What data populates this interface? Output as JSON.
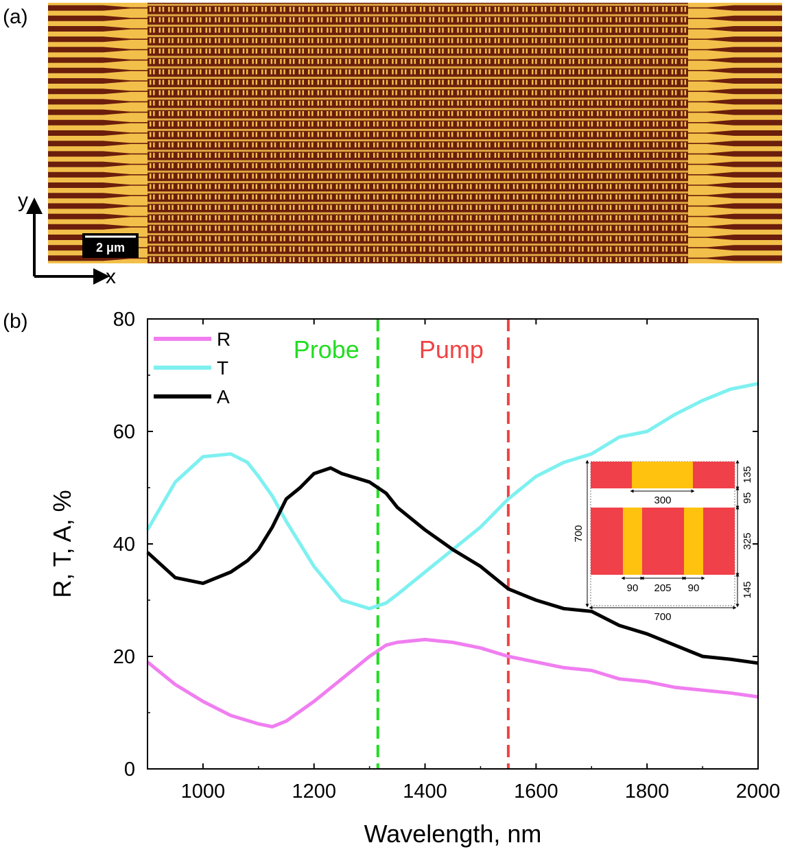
{
  "panel_a": {
    "label": "(a)",
    "scale_bar_label": "2 μm",
    "axis_x_label": "x",
    "axis_y_label": "y",
    "colors": {
      "background": "#6b1e0c",
      "gold": "#f2c04a"
    }
  },
  "panel_b": {
    "label": "(b)"
  },
  "chart_data": {
    "type": "line",
    "xlabel": "Wavelength, nm",
    "ylabel": "R, T, A, %",
    "xlim": [
      900,
      2000
    ],
    "ylim": [
      0,
      80
    ],
    "xticks": [
      "1000",
      "1200",
      "1400",
      "1600",
      "1800",
      "2000"
    ],
    "yticks": [
      "0",
      "20",
      "40",
      "60",
      "80"
    ],
    "legend_position": "top-left",
    "series": [
      {
        "name": "R",
        "color": "#f07ef0",
        "x": [
          900,
          950,
          1000,
          1050,
          1100,
          1125,
          1150,
          1200,
          1250,
          1300,
          1330,
          1350,
          1400,
          1450,
          1500,
          1550,
          1600,
          1650,
          1700,
          1750,
          1800,
          1850,
          1900,
          1950,
          2000
        ],
        "y": [
          19,
          15,
          12,
          9.5,
          8,
          7.5,
          8.5,
          12,
          16,
          20,
          22,
          22.5,
          23,
          22.5,
          21.5,
          20,
          19,
          18,
          17.5,
          16,
          15.5,
          14.5,
          14,
          13.5,
          12.8
        ]
      },
      {
        "name": "T",
        "color": "#7ef0f0",
        "x": [
          900,
          950,
          1000,
          1050,
          1080,
          1100,
          1125,
          1150,
          1200,
          1250,
          1300,
          1330,
          1350,
          1400,
          1450,
          1500,
          1550,
          1600,
          1650,
          1700,
          1750,
          1800,
          1850,
          1900,
          1950,
          2000
        ],
        "y": [
          42.5,
          51,
          55.5,
          56,
          54.5,
          52,
          48.5,
          44,
          36,
          30,
          28.5,
          29.5,
          31,
          35,
          39,
          43,
          48,
          52,
          54.5,
          56,
          59,
          60,
          63,
          65.5,
          67.5,
          68.5
        ]
      },
      {
        "name": "A",
        "color": "#000000",
        "x": [
          900,
          950,
          1000,
          1050,
          1080,
          1100,
          1125,
          1150,
          1175,
          1200,
          1230,
          1250,
          1300,
          1330,
          1350,
          1400,
          1450,
          1500,
          1550,
          1600,
          1650,
          1700,
          1750,
          1800,
          1850,
          1900,
          1950,
          2000
        ],
        "y": [
          38.5,
          34,
          33,
          35,
          37,
          39,
          43,
          48,
          50,
          52.5,
          53.5,
          52.5,
          51,
          49,
          46.5,
          42.5,
          39,
          36,
          32,
          30,
          28.5,
          28,
          25.5,
          24,
          22,
          20,
          19.5,
          18.8
        ]
      }
    ],
    "markers": [
      {
        "label": "Probe",
        "x": 1315,
        "color": "#22dd22"
      },
      {
        "label": "Pump",
        "x": 1550,
        "color": "#ee4444"
      }
    ],
    "inset": {
      "colors": {
        "red": "#f0404a",
        "gold": "#ffc20e"
      },
      "dims_top": "300",
      "dims_bottom": [
        "90",
        "205",
        "90"
      ],
      "width": "700",
      "height": "700",
      "right": [
        "135",
        "95",
        "325",
        "145"
      ]
    }
  }
}
